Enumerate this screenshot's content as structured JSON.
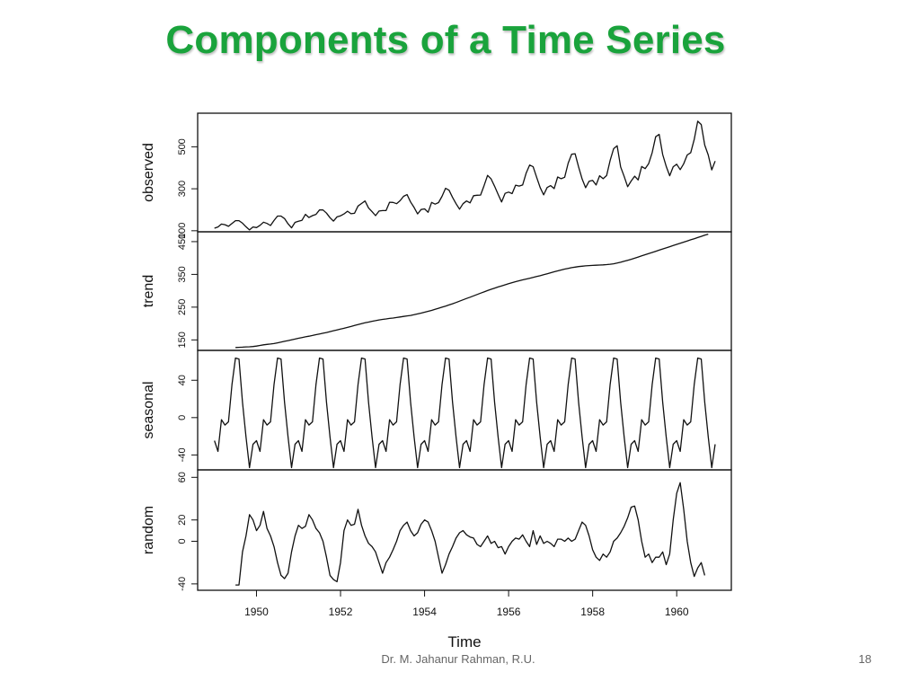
{
  "slide": {
    "title": "Components of a Time Series",
    "footer_author": "Dr. M. Jahanur Rahman, R.U.",
    "page_number": "18"
  },
  "colors": {
    "title": "#1aa33c",
    "line": "#111111",
    "frame": "#111111"
  },
  "chart_data": {
    "type": "line",
    "title": "",
    "xlabel": "Time",
    "xlim": [
      1948.6,
      1961.3
    ],
    "x_ticks": [
      1950,
      1952,
      1954,
      1956,
      1958,
      1960
    ],
    "panels": [
      {
        "name": "observed",
        "ylabel": "observed",
        "ylim": [
          95,
          660
        ],
        "y_ticks": [
          100,
          300,
          500
        ],
        "x_start": 1949.0,
        "step": 0.08333,
        "values": [
          112,
          118,
          132,
          129,
          121,
          135,
          148,
          148,
          136,
          119,
          104,
          118,
          115,
          126,
          141,
          135,
          125,
          149,
          170,
          170,
          158,
          133,
          114,
          140,
          145,
          150,
          178,
          163,
          172,
          178,
          199,
          199,
          184,
          162,
          146,
          166,
          171,
          180,
          193,
          181,
          183,
          218,
          230,
          242,
          209,
          191,
          172,
          194,
          196,
          196,
          236,
          235,
          229,
          243,
          264,
          272,
          237,
          211,
          180,
          201,
          204,
          188,
          235,
          227,
          234,
          264,
          302,
          293,
          259,
          229,
          203,
          229,
          242,
          233,
          267,
          269,
          270,
          315,
          364,
          347,
          312,
          274,
          237,
          278,
          284,
          277,
          317,
          313,
          318,
          374,
          413,
          405,
          355,
          306,
          271,
          306,
          315,
          301,
          356,
          348,
          355,
          422,
          465,
          467,
          404,
          347,
          305,
          336,
          340,
          318,
          362,
          348,
          363,
          435,
          491,
          505,
          404,
          359,
          310,
          337,
          360,
          342,
          406,
          396,
          420,
          472,
          548,
          559,
          463,
          407,
          362,
          405,
          417,
          391,
          419,
          461,
          472,
          535,
          622,
          606,
          508,
          461,
          390,
          432
        ]
      },
      {
        "name": "trend",
        "ylabel": "trend",
        "ylim": [
          118,
          480
        ],
        "y_ticks": [
          150,
          250,
          350,
          450
        ],
        "x_start": 1949.5,
        "step": 0.08333,
        "values": [
          126.8,
          127.2,
          127.9,
          128.6,
          129.0,
          129.8,
          131.2,
          133.1,
          134.9,
          136.4,
          137.4,
          138.8,
          140.9,
          143.2,
          145.7,
          148.0,
          150.4,
          152.6,
          155.0,
          157.3,
          159.4,
          161.3,
          163.5,
          165.9,
          168.1,
          170.3,
          172.6,
          175.2,
          178.0,
          180.5,
          183.0,
          185.5,
          188.1,
          191.0,
          194.0,
          196.9,
          199.7,
          202.2,
          204.5,
          206.8,
          208.9,
          210.9,
          212.6,
          214.0,
          215.6,
          216.8,
          218.4,
          220.1,
          221.6,
          223.2,
          224.7,
          226.8,
          229.3,
          231.8,
          234.5,
          237.3,
          240.0,
          243.3,
          246.6,
          249.9,
          253.3,
          256.8,
          260.2,
          264.2,
          268.3,
          272.3,
          276.4,
          280.4,
          284.5,
          288.5,
          292.6,
          296.6,
          300.7,
          304.4,
          308.0,
          311.6,
          315.0,
          318.3,
          321.6,
          324.7,
          327.7,
          330.6,
          333.3,
          335.8,
          338.3,
          340.8,
          343.3,
          346.0,
          349.0,
          352.0,
          355.0,
          358.0,
          360.8,
          363.5,
          366.2,
          368.5,
          370.5,
          372.2,
          373.8,
          375.0,
          376.0,
          376.8,
          377.5,
          378.0,
          378.4,
          379.0,
          379.8,
          381.0,
          382.5,
          384.5,
          387.0,
          390.0,
          393.0,
          396.2,
          399.5,
          403.0,
          406.5,
          410.0,
          413.5,
          417.0,
          420.5,
          424.0,
          427.5,
          431.0,
          434.5,
          438.0,
          441.5,
          445.0,
          448.5,
          452.0,
          455.5,
          459.0,
          462.5,
          466.0,
          469.5,
          473.0
        ]
      },
      {
        "name": "seasonal",
        "ylabel": "seasonal",
        "ylim": [
          -56,
          72
        ],
        "y_ticks": [
          -40,
          0,
          40
        ],
        "x_start": 1949.0,
        "step": 0.08333,
        "cycle": [
          -24.7,
          -36.2,
          -2.2,
          -8.0,
          -4.5,
          35.4,
          63.8,
          62.8,
          16.5,
          -20.6,
          -53.6,
          -28.6
        ],
        "cycles": 12
      },
      {
        "name": "random",
        "ylabel": "random",
        "ylim": [
          -46,
          67
        ],
        "y_ticks": [
          -40,
          0,
          20,
          60
        ],
        "x_start": 1949.5,
        "step": 0.08333,
        "values": [
          -41,
          -41,
          -10,
          5,
          25,
          20,
          10,
          15,
          28,
          12,
          5,
          -5,
          -20,
          -32,
          -35,
          -30,
          -10,
          5,
          15,
          12,
          14,
          25,
          20,
          12,
          8,
          0,
          -15,
          -32,
          -36,
          -38,
          -20,
          10,
          20,
          15,
          16,
          30,
          15,
          5,
          -2,
          -5,
          -10,
          -20,
          -30,
          -20,
          -15,
          -8,
          0,
          10,
          15,
          18,
          10,
          5,
          8,
          16,
          20,
          18,
          10,
          0,
          -15,
          -30,
          -22,
          -12,
          -5,
          3,
          8,
          10,
          6,
          4,
          3,
          -3,
          -5,
          0,
          5,
          -2,
          0,
          -6,
          -5,
          -12,
          -5,
          0,
          3,
          2,
          6,
          0,
          -5,
          10,
          -3,
          5,
          -2,
          0,
          -2,
          -5,
          2,
          2,
          0,
          3,
          0,
          2,
          10,
          18,
          15,
          5,
          -8,
          -15,
          -18,
          -12,
          -15,
          -10,
          0,
          3,
          8,
          14,
          22,
          32,
          33,
          20,
          0,
          -15,
          -12,
          -20,
          -15,
          -15,
          -10,
          -22,
          -12,
          20,
          45,
          55,
          30,
          0,
          -20,
          -33,
          -25,
          -20,
          -32
        ]
      }
    ]
  }
}
